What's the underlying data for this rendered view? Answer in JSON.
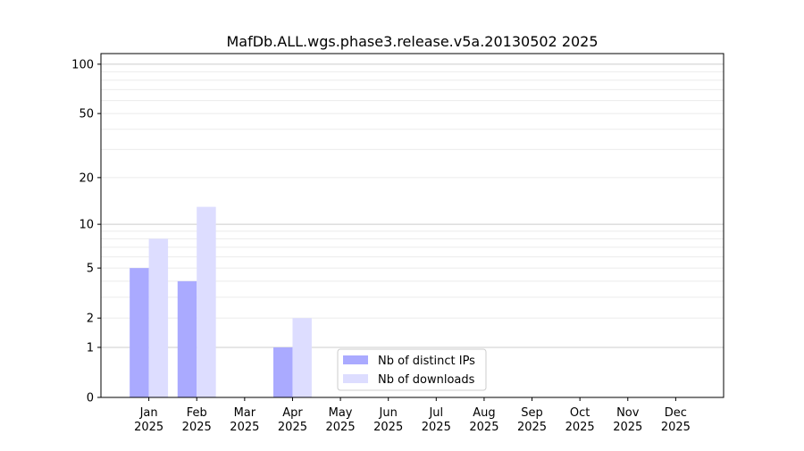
{
  "chart_data": {
    "type": "bar",
    "title": "MafDb.ALL.wgs.phase3.release.v5a.20130502 2025",
    "xlabel": "",
    "ylabel": "",
    "categories": [
      "Jan\n2025",
      "Feb\n2025",
      "Mar\n2025",
      "Apr\n2025",
      "May\n2025",
      "Jun\n2025",
      "Jul\n2025",
      "Aug\n2025",
      "Sep\n2025",
      "Oct\n2025",
      "Nov\n2025",
      "Dec\n2025"
    ],
    "series": [
      {
        "name": "Nb of distinct IPs",
        "color": "#aaaaff",
        "values": [
          5,
          4,
          0,
          1,
          0,
          0,
          0,
          0,
          0,
          0,
          0,
          0
        ]
      },
      {
        "name": "Nb of downloads",
        "color": "#ddddff",
        "values": [
          8,
          13,
          0,
          2,
          0,
          0,
          0,
          0,
          0,
          0,
          0,
          0
        ]
      }
    ],
    "yscale": "log(1+y)",
    "ylim": [
      0,
      116
    ],
    "yticks": [
      0,
      1,
      2,
      5,
      10,
      20,
      50,
      100
    ],
    "grid": true,
    "legend": "lower-center"
  }
}
